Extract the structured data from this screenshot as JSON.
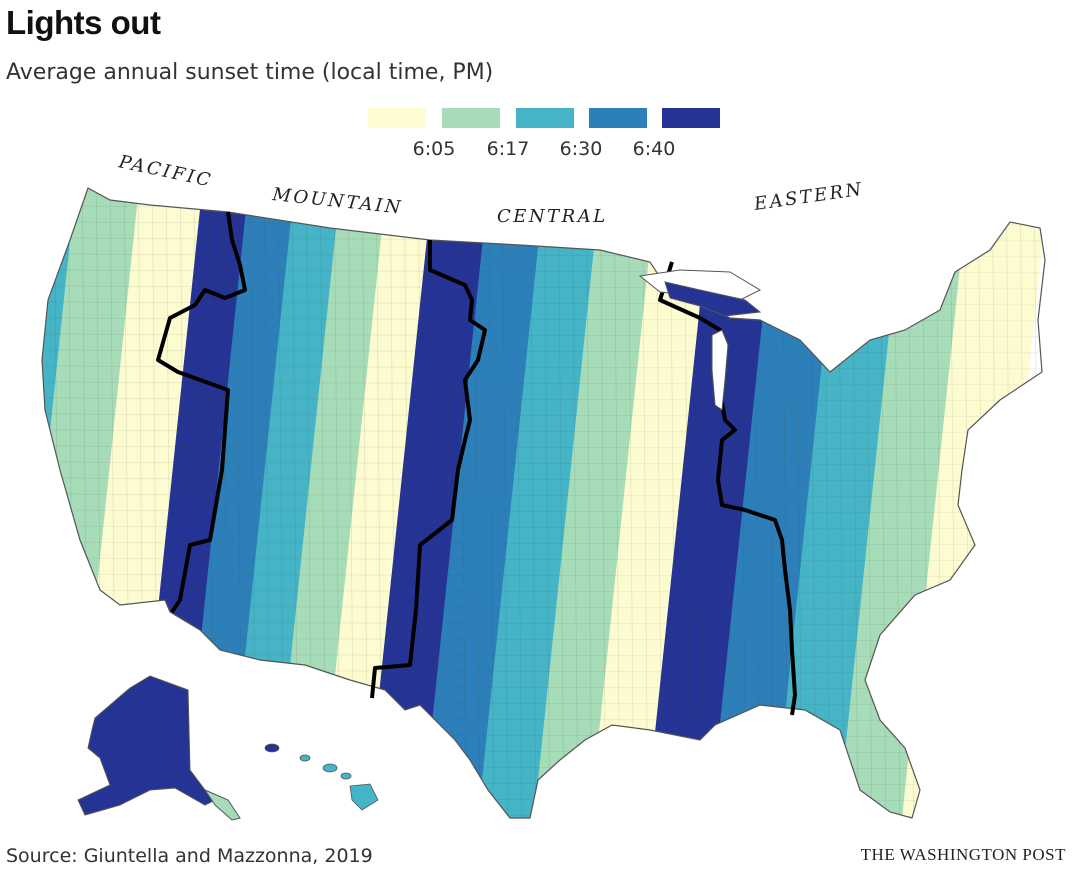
{
  "title": "Lights out",
  "subtitle": "Average annual sunset time (local time, PM)",
  "legend": {
    "colors": [
      "#fdfcd0",
      "#a6dcb8",
      "#44b4c6",
      "#2c7fb8",
      "#253494"
    ],
    "ticks": [
      "6:05",
      "6:17",
      "6:30",
      "6:40"
    ]
  },
  "zones": {
    "pacific": "PACIFIC",
    "mountain": "MOUNTAIN",
    "central": "CENTRAL",
    "eastern": "EASTERN"
  },
  "source": "Source: Giuntella and Mazzonna, 2019",
  "credit": "THE WASHINGTON POST",
  "colors": {
    "level1": "#fdfcd0",
    "level2": "#a6dcb8",
    "level3": "#44b4c6",
    "level4": "#2c7fb8",
    "level5": "#253494",
    "border": "#000000"
  }
}
